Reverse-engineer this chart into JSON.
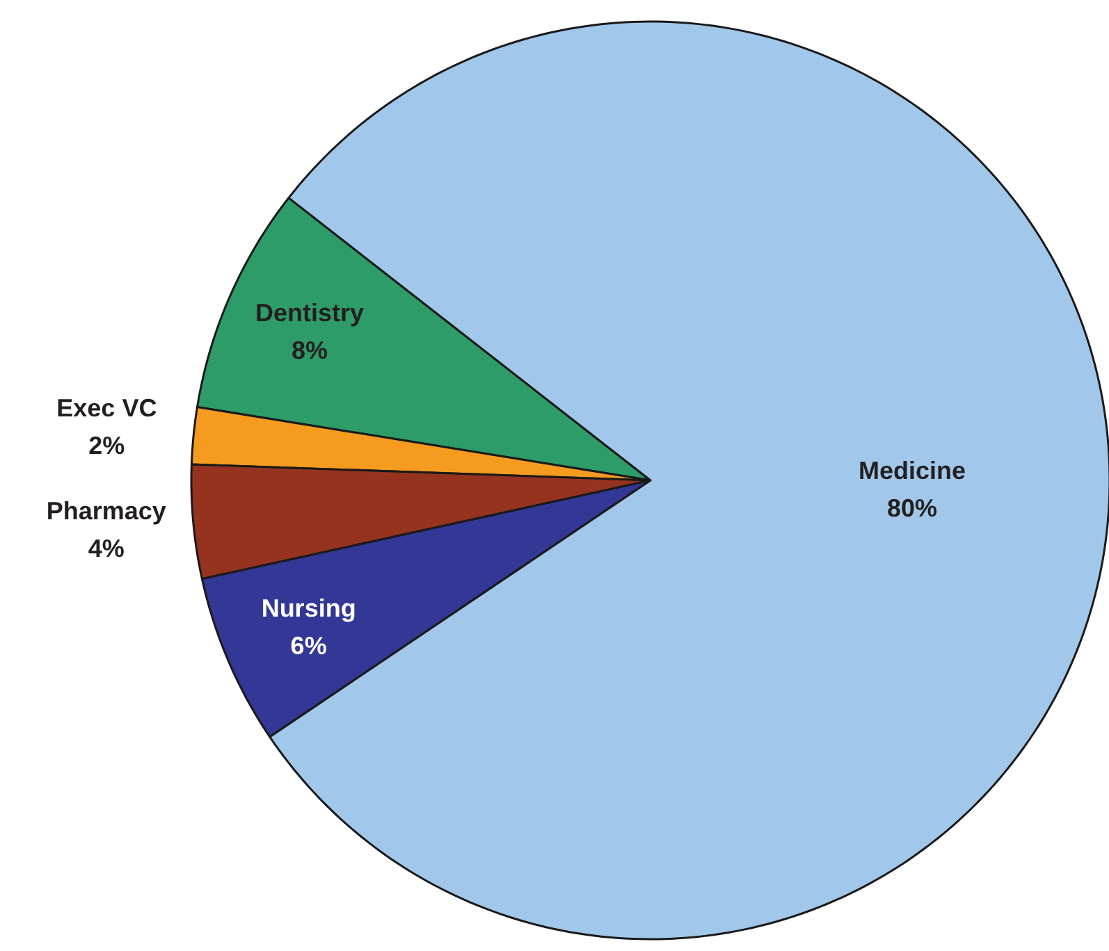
{
  "chart_data": {
    "type": "pie",
    "categories": [
      "Dentistry",
      "Exec VC",
      "Pharmacy",
      "Nursing",
      "Medicine"
    ],
    "values": [
      8,
      2,
      4,
      6,
      80
    ],
    "value_labels": [
      "8%",
      "2%",
      "4%",
      "6%",
      "80%"
    ],
    "colors": [
      "#2e9c68",
      "#f59c20",
      "#96331f",
      "#333795",
      "#a1c8ea"
    ]
  }
}
